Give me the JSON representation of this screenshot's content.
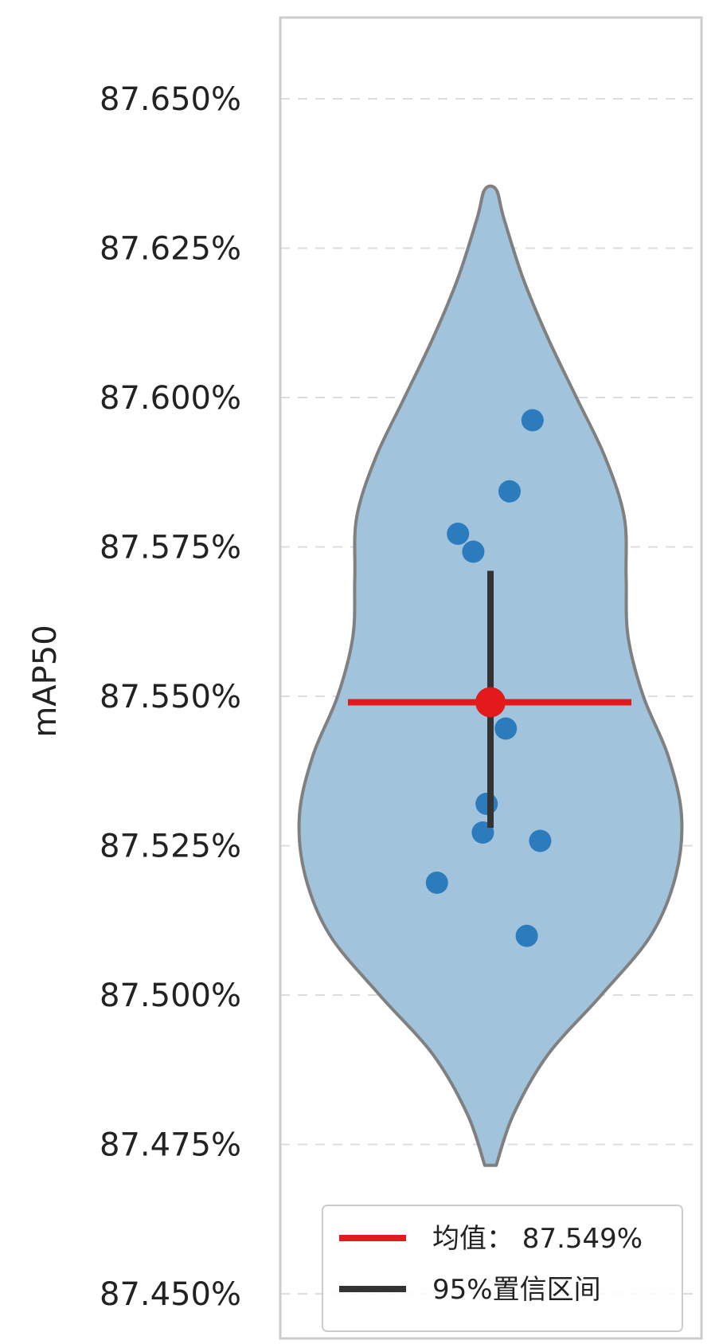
{
  "chart_data": {
    "type": "violin",
    "ylabel": "mAP50",
    "ylim": [
      87.45,
      87.65
    ],
    "yticks": [
      87.45,
      87.475,
      87.5,
      87.525,
      87.55,
      87.575,
      87.6,
      87.625,
      87.65
    ],
    "ytick_labels": [
      "87.450%",
      "87.475%",
      "87.500%",
      "87.525%",
      "87.550%",
      "87.575%",
      "87.600%",
      "87.625%",
      "87.650%"
    ],
    "grid": "horizontal dashed",
    "points": [
      {
        "offset": 0.22,
        "y": 87.5962
      },
      {
        "offset": 0.1,
        "y": 87.5843
      },
      {
        "offset": -0.17,
        "y": 87.5772
      },
      {
        "offset": -0.09,
        "y": 87.5742
      },
      {
        "offset": 0.08,
        "y": 87.5446
      },
      {
        "offset": -0.02,
        "y": 87.532
      },
      {
        "offset": -0.04,
        "y": 87.5272
      },
      {
        "offset": 0.26,
        "y": 87.5258
      },
      {
        "offset": -0.28,
        "y": 87.5188
      },
      {
        "offset": 0.19,
        "y": 87.5099
      }
    ],
    "violin_range": [
      87.4715,
      87.6348
    ],
    "violin_profile": [
      [
        87.4715,
        0.03
      ],
      [
        87.48,
        0.12
      ],
      [
        87.49,
        0.3
      ],
      [
        87.5,
        0.58
      ],
      [
        87.51,
        0.84
      ],
      [
        87.52,
        0.97
      ],
      [
        87.53,
        1.0
      ],
      [
        87.54,
        0.93
      ],
      [
        87.55,
        0.8
      ],
      [
        87.56,
        0.72
      ],
      [
        87.57,
        0.71
      ],
      [
        87.58,
        0.7
      ],
      [
        87.59,
        0.6
      ],
      [
        87.6,
        0.45
      ],
      [
        87.61,
        0.3
      ],
      [
        87.62,
        0.17
      ],
      [
        87.63,
        0.07
      ],
      [
        87.6348,
        0.03
      ]
    ],
    "mean": 87.549,
    "ci95": [
      87.528,
      87.571
    ],
    "colors": {
      "violin_fill": "#a1c3dc",
      "violin_edge": "#808080",
      "points": "#2c7bbd",
      "mean": "#e31a1c",
      "ci": "#333333"
    },
    "legend": {
      "position": "bottom-right",
      "entries": [
        {
          "label": "均值： 87.549%",
          "color": "#e31a1c"
        },
        {
          "label": "95%置信区间",
          "color": "#333333"
        }
      ]
    }
  }
}
